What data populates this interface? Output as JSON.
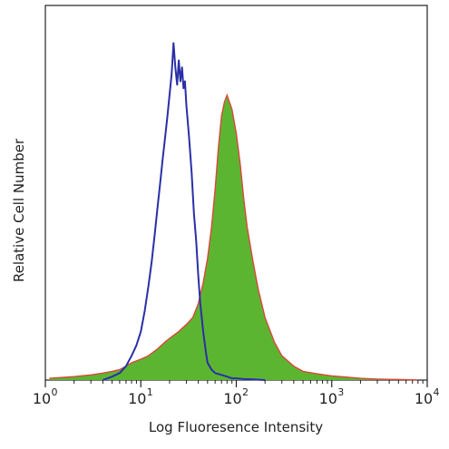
{
  "chart_data": {
    "type": "area",
    "title": "",
    "xlabel": "Log Fluoresence Intensity",
    "ylabel": "Relative Cell Number",
    "x_scale": "log",
    "xlim": [
      1,
      10000
    ],
    "ylim": [
      0,
      100
    ],
    "grid": false,
    "legend": "none",
    "x_ticks": [
      {
        "value": 1,
        "base": "10",
        "exp": "0"
      },
      {
        "value": 10,
        "base": "10",
        "exp": "1"
      },
      {
        "value": 100,
        "base": "10",
        "exp": "2"
      },
      {
        "value": 1000,
        "base": "10",
        "exp": "3"
      },
      {
        "value": 10000,
        "base": "10",
        "exp": "4"
      }
    ],
    "series": [
      {
        "style": "filled",
        "fill_color": "#5cb531",
        "edge_color": "#d9483b",
        "x": [
          1.1,
          2,
          3,
          4,
          5,
          6,
          7,
          8,
          10,
          12,
          15,
          18,
          20,
          25,
          30,
          35,
          40,
          45,
          50,
          55,
          60,
          65,
          70,
          75,
          80,
          90,
          100,
          110,
          120,
          130,
          150,
          170,
          200,
          250,
          300,
          400,
          500,
          700,
          1000,
          1500,
          2000,
          3000,
          4000,
          6000,
          8000
        ],
        "y": [
          0.5,
          1,
          1.5,
          2,
          2.5,
          3,
          4,
          5,
          6,
          7,
          9,
          11,
          12,
          14,
          16,
          18,
          22,
          28,
          35,
          44,
          55,
          67,
          76,
          80,
          82,
          78,
          71,
          62,
          52,
          44,
          34,
          26,
          18,
          11,
          7,
          4,
          2.5,
          1.8,
          1.2,
          0.8,
          0.5,
          0.3,
          0.2,
          0.1,
          0
        ]
      },
      {
        "style": "line",
        "line_color": "#2a2fa6",
        "x": [
          4,
          5,
          6,
          7,
          8,
          9,
          10,
          11,
          12,
          13,
          14,
          15,
          16,
          17,
          18,
          19,
          20,
          21,
          22,
          23,
          24,
          25,
          26,
          27,
          28,
          29,
          30,
          32,
          34,
          36,
          38,
          40,
          42,
          45,
          48,
          50,
          55,
          60,
          70,
          80,
          90,
          100,
          120,
          150,
          200
        ],
        "y": [
          0,
          1,
          2,
          4,
          7,
          10,
          14,
          20,
          27,
          34,
          42,
          50,
          57,
          64,
          70,
          76,
          82,
          88,
          97,
          90,
          85,
          92,
          86,
          90,
          84,
          86,
          79,
          70,
          60,
          48,
          40,
          30,
          22,
          14,
          8,
          5,
          3,
          2,
          1.5,
          1,
          0.5,
          0.5,
          0.3,
          0.2,
          0
        ]
      }
    ]
  }
}
